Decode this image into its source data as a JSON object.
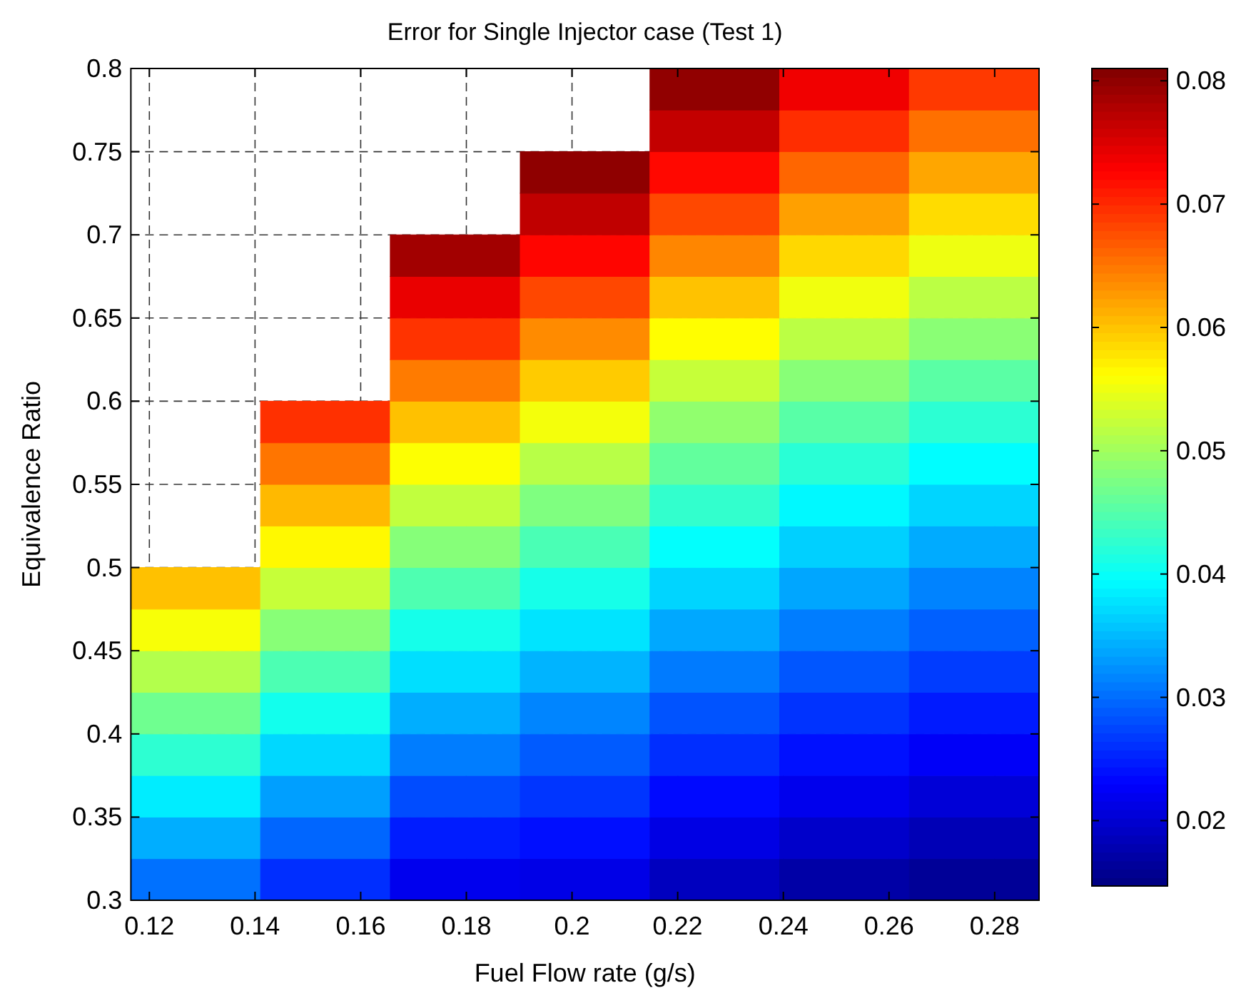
{
  "chart_data": {
    "type": "heatmap",
    "title": "Error for Single Injector case (Test 1)",
    "xlabel": "Fuel Flow rate (g/s)",
    "ylabel": "Equivalence Ratio",
    "x": [
      0.1288,
      0.1533,
      0.1779,
      0.2025,
      0.227,
      0.2516,
      0.2761
    ],
    "y": [
      0.3125,
      0.3375,
      0.3625,
      0.3875,
      0.4125,
      0.4375,
      0.4625,
      0.4875,
      0.5125,
      0.5375,
      0.5625,
      0.5875,
      0.6125,
      0.6375,
      0.6625,
      0.6875,
      0.7125,
      0.7375,
      0.7625,
      0.7875
    ],
    "cells": [
      [
        0.0303,
        0.026,
        0.0219,
        0.0214,
        0.0188,
        0.0172,
        0.0162
      ],
      [
        0.0343,
        0.0296,
        0.0248,
        0.0239,
        0.0212,
        0.0195,
        0.0182
      ],
      [
        0.0384,
        0.0333,
        0.0279,
        0.0264,
        0.0236,
        0.0218,
        0.0204
      ],
      [
        0.0425,
        0.037,
        0.0311,
        0.0289,
        0.026,
        0.024,
        0.0225
      ],
      [
        0.0468,
        0.0407,
        0.0343,
        0.0316,
        0.0284,
        0.0263,
        0.0247
      ],
      [
        0.0512,
        0.0445,
        0.0375,
        0.0347,
        0.031,
        0.0286,
        0.0269
      ],
      [
        0.0557,
        0.0484,
        0.0409,
        0.0378,
        0.0339,
        0.0311,
        0.0292
      ],
      [
        0.0602,
        0.0524,
        0.0446,
        0.041,
        0.0368,
        0.0338,
        0.0315
      ],
      [
        null,
        0.0565,
        0.0483,
        0.0444,
        0.0397,
        0.0365,
        0.0341
      ],
      [
        null,
        0.0607,
        0.0521,
        0.0478,
        0.0428,
        0.0392,
        0.0368
      ],
      [
        null,
        0.0651,
        0.056,
        0.0515,
        0.0459,
        0.0422,
        0.0395
      ],
      [
        null,
        0.0696,
        0.0602,
        0.0554,
        0.049,
        0.0453,
        0.0424
      ],
      [
        null,
        null,
        0.0647,
        0.0595,
        0.0524,
        0.0484,
        0.0454
      ],
      [
        null,
        null,
        0.0694,
        0.0637,
        0.0562,
        0.0517,
        0.0485
      ],
      [
        null,
        null,
        0.0741,
        0.0681,
        0.0601,
        0.0552,
        0.0517
      ],
      [
        null,
        null,
        0.0788,
        0.0724,
        0.064,
        0.0587,
        0.055
      ],
      [
        null,
        null,
        null,
        0.0768,
        0.068,
        0.0623,
        0.0584
      ],
      [
        null,
        null,
        null,
        0.08,
        0.0722,
        0.0661,
        0.0619
      ],
      [
        null,
        null,
        null,
        null,
        0.0766,
        0.0698,
        0.0654
      ],
      [
        null,
        null,
        null,
        null,
        0.0799,
        0.0736,
        0.069
      ]
    ],
    "xlim": [
      0.1165,
      0.2884
    ],
    "ylim": [
      0.3,
      0.8
    ],
    "xticks": [
      0.12,
      0.14,
      0.16,
      0.18,
      0.2,
      0.22,
      0.24,
      0.26,
      0.28
    ],
    "yticks": [
      0.3,
      0.35,
      0.4,
      0.45,
      0.5,
      0.55,
      0.6,
      0.65,
      0.7,
      0.75,
      0.8
    ],
    "clim": [
      0.0147,
      0.081
    ],
    "cticks": [
      0.02,
      0.03,
      0.04,
      0.05,
      0.06,
      0.07,
      0.08
    ],
    "grid": true
  }
}
